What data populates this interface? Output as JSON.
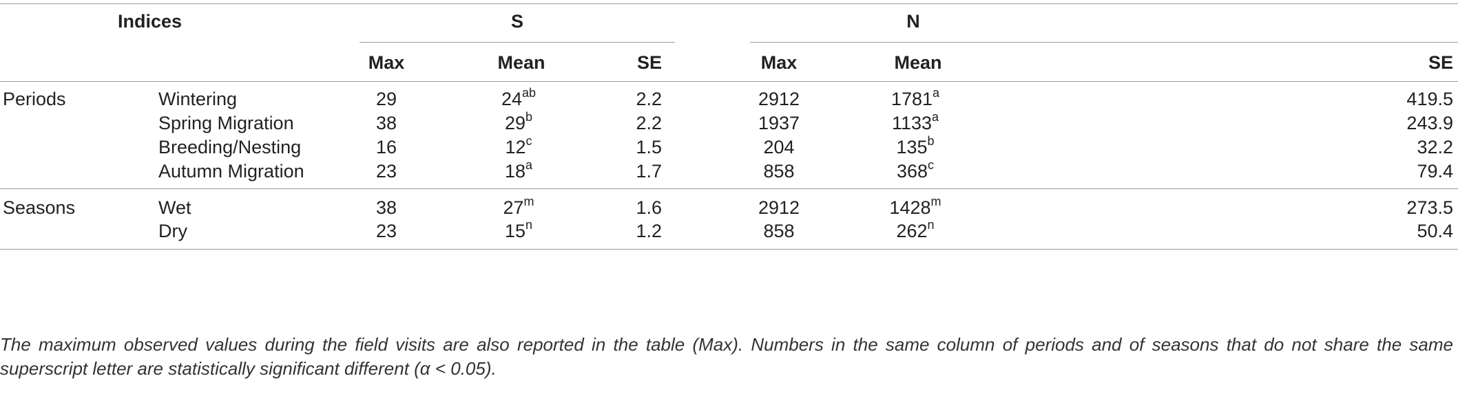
{
  "header": {
    "indices": "Indices",
    "group_s": "S",
    "group_n": "N",
    "subcolumns": [
      "Max",
      "Mean",
      "SE",
      "Max",
      "Mean",
      "SE"
    ]
  },
  "rows": [
    {
      "group": "Periods",
      "label": "Wintering",
      "s_max": "29",
      "s_mean": "24",
      "s_mean_sup": "ab",
      "s_se": "2.2",
      "n_max": "2912",
      "n_mean": "1781",
      "n_mean_sup": "a",
      "n_se": "419.5"
    },
    {
      "group": "",
      "label": "Spring Migration",
      "s_max": "38",
      "s_mean": "29",
      "s_mean_sup": "b",
      "s_se": "2.2",
      "n_max": "1937",
      "n_mean": "1133",
      "n_mean_sup": "a",
      "n_se": "243.9"
    },
    {
      "group": "",
      "label": "Breeding/Nesting",
      "s_max": "16",
      "s_mean": "12",
      "s_mean_sup": "c",
      "s_se": "1.5",
      "n_max": "204",
      "n_mean": "135",
      "n_mean_sup": "b",
      "n_se": "32.2"
    },
    {
      "group": "",
      "label": "Autumn Migration",
      "s_max": "23",
      "s_mean": "18",
      "s_mean_sup": "a",
      "s_se": "1.7",
      "n_max": "858",
      "n_mean": "368",
      "n_mean_sup": "c",
      "n_se": "79.4"
    },
    {
      "group": "Seasons",
      "label": "Wet",
      "s_max": "38",
      "s_mean": "27",
      "s_mean_sup": "m",
      "s_se": "1.6",
      "n_max": "2912",
      "n_mean": "1428",
      "n_mean_sup": "m",
      "n_se": "273.5"
    },
    {
      "group": "",
      "label": "Dry",
      "s_max": "23",
      "s_mean": "15",
      "s_mean_sup": "n",
      "s_se": "1.2",
      "n_max": "858",
      "n_mean": "262",
      "n_mean_sup": "n",
      "n_se": "50.4"
    }
  ],
  "footnote": "The maximum observed values during the field visits are also reported in the table (Max). Numbers in the same column of periods and of seasons that do not share the same superscript letter are statistically significant different (α < 0.05)."
}
